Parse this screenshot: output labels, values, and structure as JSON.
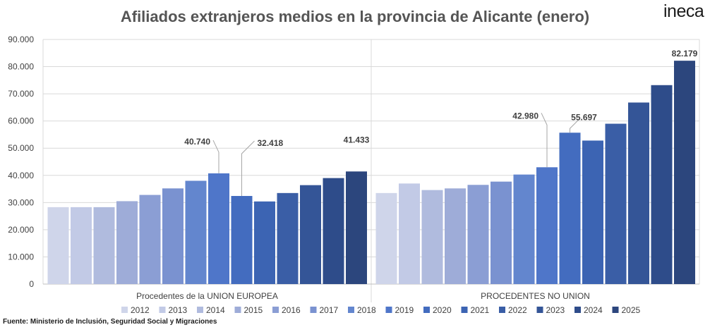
{
  "title": "Afiliados extranjeros medios en la provincia de Alicante (enero)",
  "logo": "ineca",
  "source": "Fuente: Ministerio de Inclusión, Seguridad Social y Migraciones",
  "chart_data": {
    "type": "bar",
    "years": [
      "2012",
      "2013",
      "2014",
      "2015",
      "2016",
      "2017",
      "2018",
      "2019",
      "2020",
      "2021",
      "2022",
      "2023",
      "2024",
      "2025"
    ],
    "colors": [
      "#cfd5ea",
      "#c2cae6",
      "#b0bbde",
      "#9eacd8",
      "#8b9ed4",
      "#7a92d0",
      "#6386ce",
      "#4f76c9",
      "#436cbf",
      "#3c64b3",
      "#3a5ea6",
      "#345597",
      "#2e4c8a",
      "#2c467d"
    ],
    "groups": [
      {
        "name": "Procedentes de la UNION EUROPEA",
        "values": [
          28300,
          28300,
          28300,
          30500,
          32800,
          35200,
          38000,
          40740,
          32418,
          30400,
          33500,
          36400,
          39000,
          41433
        ],
        "labels": [
          null,
          null,
          null,
          null,
          null,
          null,
          null,
          "40.740",
          "32.418",
          null,
          null,
          null,
          null,
          "41.433"
        ]
      },
      {
        "name": "PROCEDENTES  NO UNION",
        "values": [
          33500,
          37000,
          34600,
          35200,
          36500,
          37700,
          40300,
          42980,
          55697,
          52800,
          59000,
          66800,
          73200,
          82179
        ],
        "labels": [
          null,
          null,
          null,
          null,
          null,
          null,
          null,
          "42.980",
          "55.697",
          null,
          null,
          null,
          null,
          "82.179"
        ]
      }
    ],
    "y_ticks": [
      "0",
      "10.000",
      "20.000",
      "30.000",
      "40.000",
      "50.000",
      "60.000",
      "70.000",
      "80.000",
      "90.000"
    ],
    "ylim": [
      0,
      90000
    ],
    "grid": true,
    "legend_position": "bottom"
  }
}
